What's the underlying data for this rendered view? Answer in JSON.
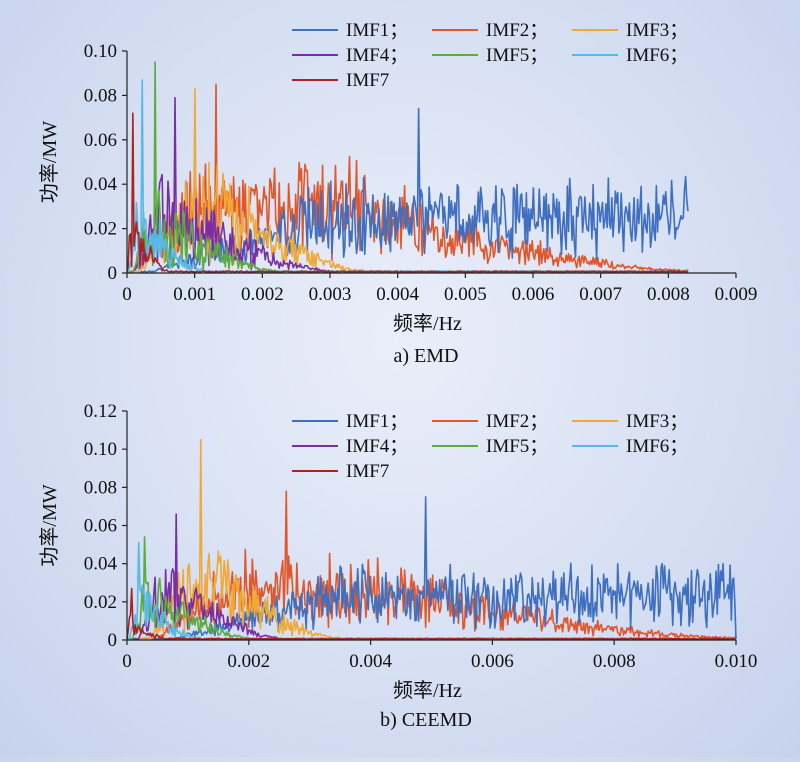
{
  "colors": {
    "IMF1": "#3f6fc0",
    "IMF2": "#e1562a",
    "IMF3": "#f0a836",
    "IMF4": "#7a2ea3",
    "IMF5": "#5aac3c",
    "IMF6": "#58b8e8",
    "IMF7": "#a82424"
  },
  "chart_data": [
    {
      "type": "line",
      "caption": "a) EMD",
      "xlabel": "频率/Hz",
      "ylabel": "功率/MW",
      "xlim": [
        0,
        0.009
      ],
      "ylim": [
        0,
        0.1
      ],
      "xticks": [
        "0",
        "0.001",
        "0.002",
        "0.003",
        "0.004",
        "0.005",
        "0.006",
        "0.007",
        "0.008",
        "0.009"
      ],
      "yticks": [
        "0",
        "0.02",
        "0.04",
        "0.06",
        "0.08",
        "0.10"
      ],
      "legend": [
        "IMF1；",
        "IMF2；",
        "IMF3；",
        "IMF4；",
        "IMF5；",
        "IMF6；",
        "IMF7"
      ],
      "legend_position": "top-right",
      "x_max_data": 0.0083,
      "series": [
        {
          "name": "IMF1",
          "start": 0.0004,
          "rampEnd": 0.003,
          "plateauEnd": 0.0083,
          "end": 0.0083,
          "amp": 0.03,
          "noise": 0.022,
          "peak": [
            0.0043,
            0.074
          ]
        },
        {
          "name": "IMF2",
          "start": 0.0001,
          "rampEnd": 0.001,
          "plateauEnd": 0.0033,
          "end": 0.0083,
          "amp": 0.034,
          "noise": 0.028,
          "peak": [
            0.0013,
            0.085
          ]
        },
        {
          "name": "IMF3",
          "start": 0.0002,
          "rampEnd": 0.0009,
          "plateauEnd": 0.0015,
          "end": 0.0035,
          "amp": 0.03,
          "noise": 0.03,
          "peak": [
            0.001,
            0.083
          ]
        },
        {
          "name": "IMF4",
          "start": 0.0001,
          "rampEnd": 0.0005,
          "plateauEnd": 0.0008,
          "end": 0.003,
          "amp": 0.028,
          "noise": 0.028,
          "peak": [
            0.0007,
            0.079
          ]
        },
        {
          "name": "IMF5",
          "start": 0.0001,
          "rampEnd": 0.0003,
          "plateauEnd": 0.0005,
          "end": 0.0022,
          "amp": 0.025,
          "noise": 0.03,
          "peak": [
            0.0004,
            0.095
          ]
        },
        {
          "name": "IMF6",
          "start": 3e-05,
          "rampEnd": 0.00015,
          "plateauEnd": 0.00028,
          "end": 0.0012,
          "amp": 0.022,
          "noise": 0.025,
          "peak": [
            0.00022,
            0.087
          ]
        },
        {
          "name": "IMF7",
          "start": 0.0,
          "rampEnd": 5e-05,
          "plateauEnd": 0.00012,
          "end": 0.0006,
          "amp": 0.018,
          "noise": 0.022,
          "peak": [
            8e-05,
            0.072
          ]
        }
      ]
    },
    {
      "type": "line",
      "caption": "b) CEEMD",
      "xlabel": "频率/Hz",
      "ylabel": "功率/MW",
      "xlim": [
        0,
        0.01
      ],
      "ylim": [
        0,
        0.12
      ],
      "xticks": [
        "0",
        "0.002",
        "0.004",
        "0.006",
        "0.008",
        "0.010"
      ],
      "yticks": [
        "0",
        "0.02",
        "0.04",
        "0.06",
        "0.08",
        "0.10",
        "0.12"
      ],
      "legend": [
        "IMF1；",
        "IMF2；",
        "IMF3；",
        "IMF4；",
        "IMF5；",
        "IMF6；",
        "IMF7"
      ],
      "legend_position": "top-right",
      "x_max_data": 0.01,
      "series": [
        {
          "name": "IMF1",
          "start": 0.0008,
          "rampEnd": 0.0035,
          "plateauEnd": 0.01,
          "end": 0.01,
          "amp": 0.028,
          "noise": 0.02,
          "peak": [
            0.0049,
            0.075
          ]
        },
        {
          "name": "IMF2",
          "start": 0.0005,
          "rampEnd": 0.0015,
          "plateauEnd": 0.004,
          "end": 0.01,
          "amp": 0.032,
          "noise": 0.025,
          "peak": [
            0.0026,
            0.078
          ]
        },
        {
          "name": "IMF3",
          "start": 0.0004,
          "rampEnd": 0.0009,
          "plateauEnd": 0.0016,
          "end": 0.0035,
          "amp": 0.03,
          "noise": 0.028,
          "peak": [
            0.0012,
            0.105
          ]
        },
        {
          "name": "IMF4",
          "start": 0.0002,
          "rampEnd": 0.0005,
          "plateauEnd": 0.001,
          "end": 0.0025,
          "amp": 0.026,
          "noise": 0.026,
          "peak": [
            0.0008,
            0.066
          ]
        },
        {
          "name": "IMF5",
          "start": 0.0001,
          "rampEnd": 0.0003,
          "plateauEnd": 0.0006,
          "end": 0.002,
          "amp": 0.022,
          "noise": 0.024,
          "peak": [
            0.00028,
            0.054
          ]
        },
        {
          "name": "IMF6",
          "start": 5e-05,
          "rampEnd": 0.00015,
          "plateauEnd": 0.0003,
          "end": 0.0012,
          "amp": 0.018,
          "noise": 0.022,
          "peak": [
            0.00018,
            0.051
          ]
        },
        {
          "name": "IMF7",
          "start": 0.0,
          "rampEnd": 4e-05,
          "plateauEnd": 0.0001,
          "end": 0.0006,
          "amp": 0.01,
          "noise": 0.012,
          "peak": [
            6e-05,
            0.027
          ]
        }
      ]
    }
  ]
}
